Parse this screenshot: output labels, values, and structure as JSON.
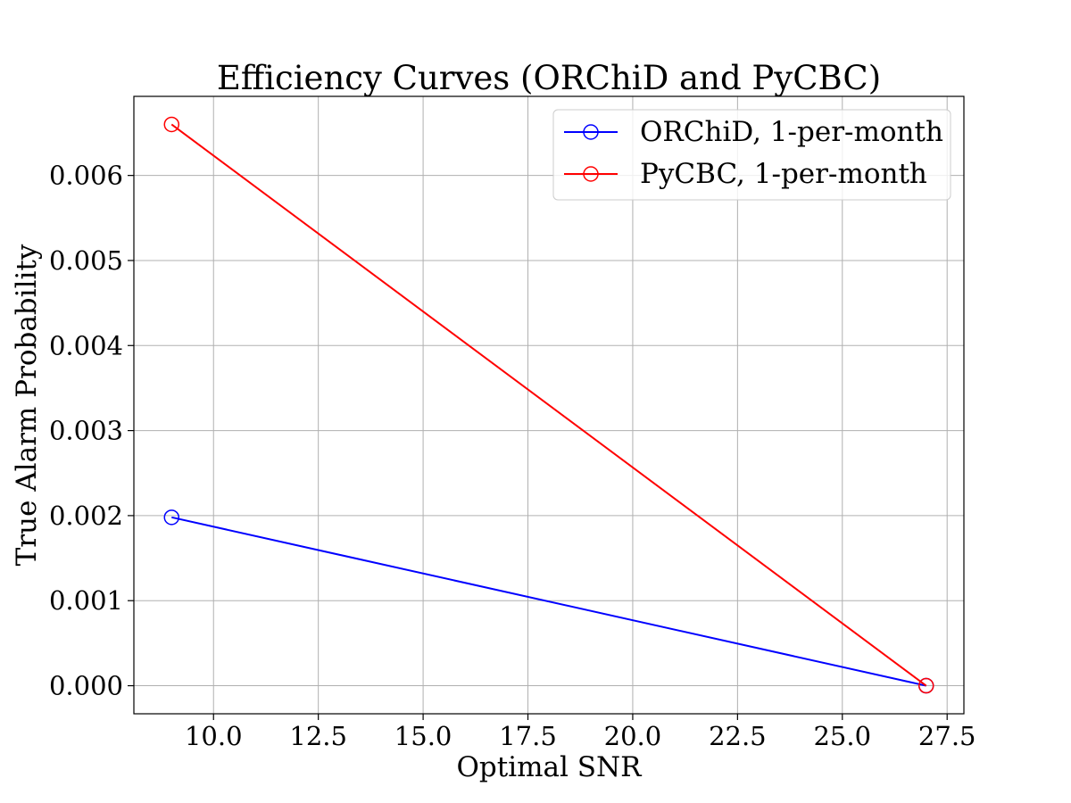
{
  "chart_data": {
    "type": "line",
    "title": "Efficiency Curves (ORChiD and PyCBC)",
    "xlabel": "Optimal SNR",
    "ylabel": "True Alarm Probability",
    "xlim": [
      8.1,
      27.9
    ],
    "ylim": [
      -0.00033,
      0.00693
    ],
    "x_ticks": [
      10.0,
      12.5,
      15.0,
      17.5,
      20.0,
      22.5,
      25.0,
      27.5
    ],
    "x_tick_labels": [
      "10.0",
      "12.5",
      "15.0",
      "17.5",
      "20.0",
      "22.5",
      "25.0",
      "27.5"
    ],
    "y_ticks": [
      0.0,
      0.001,
      0.002,
      0.003,
      0.004,
      0.005,
      0.006
    ],
    "y_tick_labels": [
      "0.000",
      "0.001",
      "0.002",
      "0.003",
      "0.004",
      "0.005",
      "0.006"
    ],
    "grid": true,
    "legend_position": "top-right",
    "marker": "open-circle",
    "series": [
      {
        "name": "ORChiD, 1-per-month",
        "color": "#0000ff",
        "x": [
          9.0,
          27.0
        ],
        "y": [
          0.00198,
          0.0
        ]
      },
      {
        "name": "PyCBC, 1-per-month",
        "color": "#ff0000",
        "x": [
          9.0,
          27.0
        ],
        "y": [
          0.0066,
          0.0
        ]
      }
    ]
  }
}
